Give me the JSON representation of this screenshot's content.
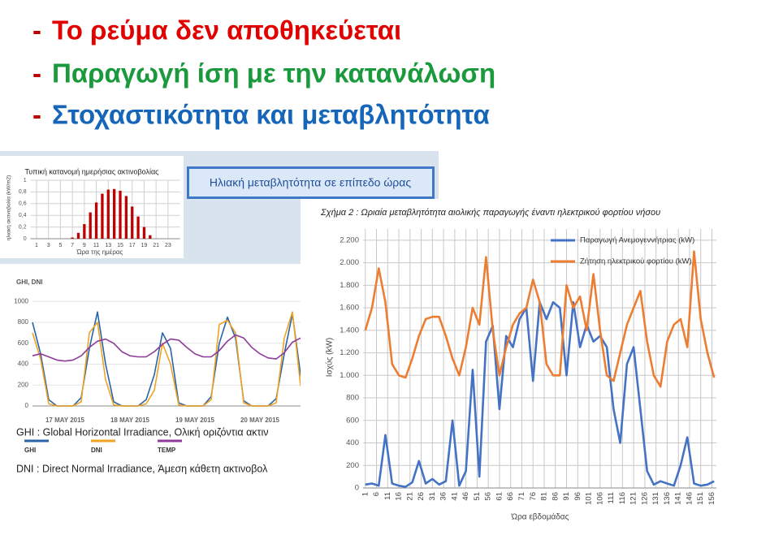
{
  "bullets": [
    {
      "marker": "-",
      "text": "Το ρεύμα δεν αποθηκεύεται"
    },
    {
      "marker": "-",
      "text": "Παραγωγή ίση με την κατανάλωση"
    },
    {
      "marker": "-",
      "text": "Στοχαστικότητα και μεταβλητότητα"
    }
  ],
  "banner": "Ηλιακή μεταβλητότητα σε επίπεδο ώρας",
  "chart_data": [
    {
      "type": "bar",
      "title": "Τυπική κατανομή ημερήσιας ακτινοβολίας",
      "xlabel": "Ώρα της ημέρας",
      "ylabel": "ηλιακή ακτινοβολία (kW/m2)",
      "x": [
        1,
        2,
        3,
        4,
        5,
        6,
        7,
        8,
        9,
        10,
        11,
        12,
        13,
        14,
        15,
        16,
        17,
        18,
        19,
        20,
        21,
        22,
        23,
        24
      ],
      "values": [
        0,
        0,
        0,
        0,
        0,
        0,
        0.02,
        0.1,
        0.25,
        0.45,
        0.62,
        0.77,
        0.84,
        0.85,
        0.82,
        0.73,
        0.55,
        0.38,
        0.2,
        0.06,
        0,
        0,
        0,
        0
      ],
      "color": "#c00000",
      "xlim": [
        0,
        25
      ],
      "ylim": [
        0,
        1
      ],
      "xticks": [
        1,
        3,
        5,
        7,
        9,
        11,
        13,
        15,
        17,
        19,
        21,
        23
      ],
      "yticks": [
        0,
        {
          "value": 0.2,
          "label": "0,2"
        },
        {
          "value": 0.4,
          "label": "0,4"
        },
        {
          "value": 0.6,
          "label": "0,6"
        },
        {
          "value": 0.8,
          "label": "0,8"
        },
        1
      ],
      "grid": true
    },
    {
      "type": "line",
      "title": "GHI, DNI",
      "categories": [
        null,
        null,
        null,
        null,
        "17 MAY 2015",
        null,
        null,
        null,
        null,
        null,
        null,
        null,
        "18 MAY 2015",
        null,
        null,
        null,
        null,
        null,
        null,
        null,
        "19 MAY 2015",
        null,
        null,
        null,
        null,
        null,
        null,
        null,
        "20 MAY 2015",
        null,
        null,
        null,
        null,
        null,
        null,
        null
      ],
      "series": [
        {
          "name": "GHI",
          "color": "#2a64a8",
          "values": [
            800,
            500,
            60,
            0,
            0,
            0,
            80,
            550,
            900,
            400,
            40,
            0,
            0,
            0,
            60,
            300,
            700,
            550,
            30,
            0,
            0,
            0,
            90,
            600,
            850,
            650,
            50,
            0,
            0,
            0,
            70,
            500,
            880,
            300,
            40,
            0
          ]
        },
        {
          "name": "DNI",
          "color": "#f0a322",
          "values": [
            700,
            450,
            20,
            0,
            0,
            0,
            40,
            700,
            800,
            250,
            10,
            0,
            0,
            0,
            20,
            150,
            600,
            400,
            10,
            0,
            0,
            0,
            60,
            780,
            820,
            700,
            30,
            0,
            0,
            0,
            30,
            650,
            900,
            200,
            20,
            0
          ]
        },
        {
          "name": "TEMP",
          "color": "#8e3b99",
          "values": [
            480,
            500,
            470,
            440,
            430,
            440,
            480,
            560,
            620,
            640,
            600,
            520,
            480,
            470,
            470,
            520,
            590,
            640,
            630,
            560,
            500,
            470,
            470,
            530,
            620,
            680,
            650,
            560,
            500,
            460,
            450,
            510,
            610,
            650,
            640,
            580
          ]
        }
      ],
      "ylim": [
        0,
        1150
      ],
      "yticks": [
        0,
        200,
        400,
        600,
        800,
        1000
      ],
      "grid": true,
      "notes": [
        "GHI : Global Horizontal Irradiance, Ολική οριζόντια ακτιν",
        "DNI : Direct Normal Irradiance, Άμεση κάθετη ακτινοβολ"
      ]
    },
    {
      "type": "line",
      "title": "Σχήμα 2 : Ωριαία μεταβλητότητα αιολικής παραγωγής έναντι ηλεκτρικού φορτίου νήσου",
      "xlabel": "Ώρα εβδομάδας",
      "ylabel": "Ισχύς (kW)",
      "x": [
        1,
        4,
        7,
        10,
        13,
        16,
        19,
        22,
        25,
        28,
        31,
        34,
        37,
        40,
        43,
        46,
        49,
        52,
        55,
        58,
        61,
        64,
        67,
        70,
        73,
        76,
        79,
        82,
        85,
        88,
        91,
        94,
        97,
        100,
        103,
        106,
        109,
        112,
        115,
        118,
        121,
        124,
        127,
        130,
        133,
        136,
        139,
        142,
        145,
        148,
        151,
        154,
        157
      ],
      "series": [
        {
          "name": "Παραγωγή Ανεμογεννήτριας (kW)",
          "color": "#4472c4",
          "values": [
            30,
            40,
            20,
            470,
            40,
            20,
            10,
            50,
            240,
            40,
            80,
            30,
            60,
            600,
            20,
            150,
            1050,
            100,
            1300,
            1440,
            700,
            1350,
            1250,
            1500,
            1600,
            950,
            1650,
            1500,
            1650,
            1600,
            1000,
            1650,
            1250,
            1450,
            1300,
            1350,
            1250,
            700,
            400,
            1100,
            1250,
            700,
            150,
            30,
            60,
            40,
            20,
            200,
            450,
            40,
            20,
            30,
            60
          ]
        },
        {
          "name": "Ζήτηση ηλεκτρικού φορτίου (kW)",
          "color": "#ed7d31",
          "values": [
            1400,
            1600,
            1950,
            1650,
            1100,
            1000,
            980,
            1150,
            1350,
            1500,
            1520,
            1520,
            1350,
            1150,
            1000,
            1250,
            1600,
            1450,
            2050,
            1400,
            1000,
            1250,
            1450,
            1550,
            1600,
            1850,
            1650,
            1100,
            1000,
            1000,
            1800,
            1600,
            1700,
            1400,
            1900,
            1400,
            1000,
            950,
            1200,
            1450,
            1600,
            1750,
            1300,
            1000,
            900,
            1300,
            1450,
            1500,
            1250,
            2100,
            1500,
            1200,
            980
          ]
        }
      ],
      "xlim": [
        0,
        158
      ],
      "ylim": [
        0,
        2300
      ],
      "xticks": [
        1,
        6,
        11,
        16,
        21,
        26,
        31,
        36,
        41,
        46,
        51,
        56,
        61,
        66,
        71,
        76,
        81,
        86,
        91,
        96,
        101,
        106,
        111,
        116,
        121,
        126,
        131,
        136,
        141,
        146,
        151,
        156
      ],
      "yticks": [
        0,
        200,
        400,
        600,
        800,
        {
          "value": 1000,
          "label": "1.000"
        },
        {
          "value": 1200,
          "label": "1.200"
        },
        {
          "value": 1400,
          "label": "1.400"
        },
        {
          "value": 1600,
          "label": "1.600"
        },
        {
          "value": 1800,
          "label": "1.800"
        },
        {
          "value": 2000,
          "label": "2.000"
        },
        {
          "value": 2200,
          "label": "2.200"
        }
      ],
      "grid": true
    }
  ]
}
